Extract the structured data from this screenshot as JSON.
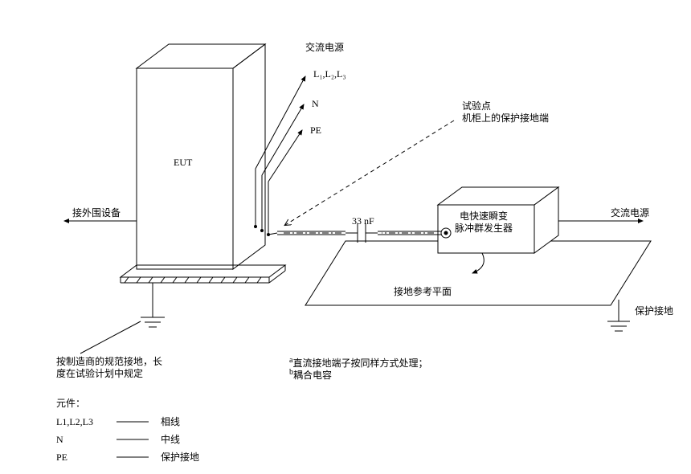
{
  "labels": {
    "ac_power_top": "交流电源",
    "l_lines": "L₁,L₂,L₃",
    "n_line": "N",
    "pe_line": "PE",
    "eut": "EUT",
    "test_point_line1": "试验点",
    "test_point_line2": "机柜上的保护接地端",
    "peripheral": "接外围设备",
    "capacitor": "33 nF",
    "generator_line1": "电快速瞬变",
    "generator_line2": "脉冲群发生器",
    "ac_power_right": "交流电源",
    "ground_plane": "接地参考平面",
    "protective_earth": "保护接地",
    "earth_note_line1": "按制造商的规范接地，长",
    "earth_note_line2": "度在试验计划中规定",
    "footnote_a": "a 直流接地端子按同样方式处理；",
    "footnote_b": "b 耦合电容",
    "legend_title": "元件：",
    "legend_l": "L1,L2,L3",
    "legend_l_desc": "相线",
    "legend_n": "N",
    "legend_n_desc": "中线",
    "legend_pe": "PE",
    "legend_pe_desc": "保护接地"
  },
  "style": {
    "stroke": "#000000",
    "stroke_width": 1,
    "font_size": 12,
    "bg": "#ffffff"
  }
}
